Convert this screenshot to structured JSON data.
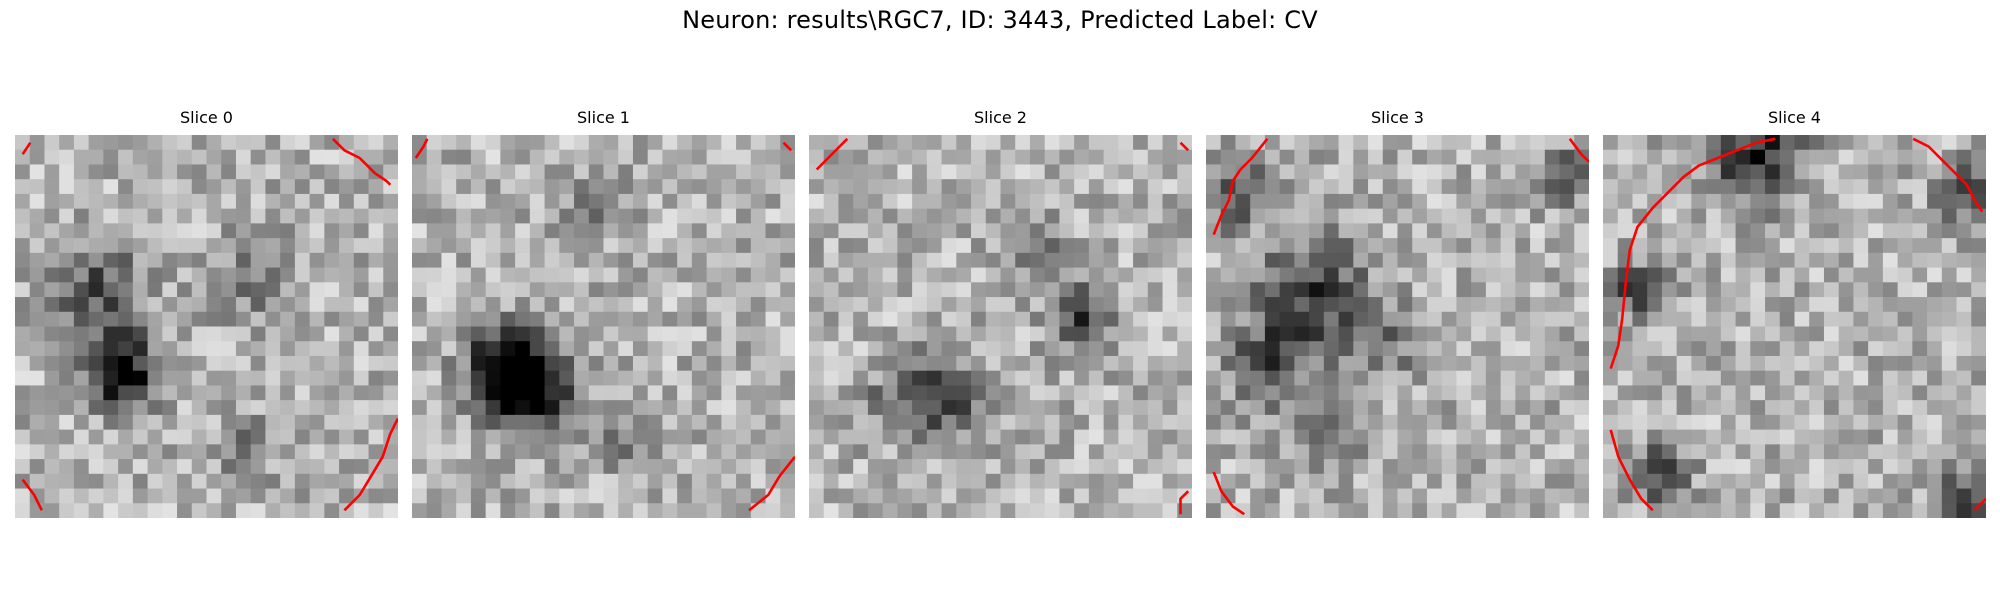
{
  "figure": {
    "title": "Neuron: results\\RGC7, ID: 3443, Predicted Label: CV",
    "grid_size": 26,
    "colormap": "gray",
    "contour_color": "#ff0000"
  },
  "slices": [
    {
      "label": "Slice 0",
      "dark_spots": [
        [
          0.28,
          0.62,
          0.09,
          0.7
        ],
        [
          0.22,
          0.4,
          0.12,
          0.35
        ],
        [
          0.62,
          0.38,
          0.1,
          0.25
        ],
        [
          0.6,
          0.82,
          0.08,
          0.2
        ]
      ],
      "contours": [
        [
          [
            0.83,
            0.01
          ],
          [
            0.86,
            0.04
          ],
          [
            0.9,
            0.06
          ],
          [
            0.94,
            0.1
          ],
          [
            0.97,
            0.12
          ],
          [
            0.98,
            0.13
          ]
        ],
        [
          [
            0.86,
            0.98
          ],
          [
            0.9,
            0.94
          ],
          [
            0.93,
            0.89
          ],
          [
            0.96,
            0.84
          ],
          [
            0.98,
            0.78
          ],
          [
            1.0,
            0.74
          ]
        ],
        [
          [
            0.02,
            0.9
          ],
          [
            0.05,
            0.94
          ],
          [
            0.07,
            0.98
          ]
        ],
        [
          [
            0.02,
            0.05
          ],
          [
            0.04,
            0.02
          ]
        ]
      ]
    },
    {
      "label": "Slice 1",
      "dark_spots": [
        [
          0.3,
          0.66,
          0.11,
          0.78
        ],
        [
          0.24,
          0.58,
          0.09,
          0.5
        ],
        [
          0.58,
          0.8,
          0.08,
          0.25
        ],
        [
          0.45,
          0.2,
          0.1,
          0.15
        ]
      ],
      "contours": [
        [
          [
            0.01,
            0.06
          ],
          [
            0.03,
            0.03
          ],
          [
            0.04,
            0.01
          ]
        ],
        [
          [
            0.97,
            0.02
          ],
          [
            0.99,
            0.04
          ]
        ],
        [
          [
            0.88,
            0.98
          ],
          [
            0.93,
            0.94
          ],
          [
            0.96,
            0.89
          ],
          [
            1.0,
            0.84
          ]
        ]
      ]
    },
    {
      "label": "Slice 2",
      "dark_spots": [
        [
          0.35,
          0.68,
          0.1,
          0.45
        ],
        [
          0.72,
          0.48,
          0.08,
          0.45
        ],
        [
          0.6,
          0.3,
          0.09,
          0.2
        ],
        [
          0.2,
          0.7,
          0.08,
          0.2
        ]
      ],
      "contours": [
        [
          [
            0.02,
            0.09
          ],
          [
            0.05,
            0.06
          ],
          [
            0.08,
            0.03
          ],
          [
            0.1,
            0.01
          ]
        ],
        [
          [
            0.97,
            0.02
          ],
          [
            0.99,
            0.04
          ]
        ],
        [
          [
            0.97,
            0.99
          ],
          [
            0.97,
            0.95
          ],
          [
            0.99,
            0.93
          ]
        ]
      ]
    },
    {
      "label": "Slice 3",
      "dark_spots": [
        [
          0.28,
          0.42,
          0.14,
          0.45
        ],
        [
          0.16,
          0.6,
          0.1,
          0.4
        ],
        [
          0.5,
          0.55,
          0.1,
          0.2
        ],
        [
          0.3,
          0.8,
          0.09,
          0.25
        ],
        [
          0.07,
          0.15,
          0.08,
          0.45
        ],
        [
          0.94,
          0.1,
          0.07,
          0.35
        ]
      ],
      "contours": [
        [
          [
            0.02,
            0.26
          ],
          [
            0.04,
            0.21
          ],
          [
            0.06,
            0.17
          ],
          [
            0.07,
            0.12
          ],
          [
            0.09,
            0.09
          ],
          [
            0.12,
            0.06
          ],
          [
            0.16,
            0.01
          ]
        ],
        [
          [
            0.95,
            0.01
          ],
          [
            0.98,
            0.05
          ],
          [
            1.0,
            0.07
          ]
        ],
        [
          [
            0.02,
            0.88
          ],
          [
            0.04,
            0.93
          ],
          [
            0.07,
            0.97
          ],
          [
            0.1,
            0.99
          ]
        ]
      ]
    },
    {
      "label": "Slice 4",
      "dark_spots": [
        [
          0.1,
          0.4,
          0.06,
          0.55
        ],
        [
          0.4,
          0.05,
          0.12,
          0.55
        ],
        [
          0.15,
          0.88,
          0.07,
          0.5
        ],
        [
          0.95,
          0.15,
          0.07,
          0.5
        ],
        [
          0.95,
          0.95,
          0.08,
          0.4
        ]
      ],
      "contours": [
        [
          [
            0.02,
            0.61
          ],
          [
            0.04,
            0.55
          ],
          [
            0.05,
            0.48
          ],
          [
            0.06,
            0.38
          ],
          [
            0.07,
            0.3
          ],
          [
            0.09,
            0.24
          ],
          [
            0.13,
            0.19
          ],
          [
            0.17,
            0.15
          ],
          [
            0.21,
            0.11
          ],
          [
            0.25,
            0.08
          ],
          [
            0.3,
            0.06
          ],
          [
            0.35,
            0.04
          ],
          [
            0.4,
            0.02
          ],
          [
            0.45,
            0.01
          ]
        ],
        [
          [
            0.81,
            0.01
          ],
          [
            0.85,
            0.03
          ],
          [
            0.89,
            0.07
          ],
          [
            0.92,
            0.1
          ],
          [
            0.95,
            0.13
          ],
          [
            0.97,
            0.17
          ],
          [
            0.99,
            0.2
          ]
        ],
        [
          [
            0.02,
            0.77
          ],
          [
            0.04,
            0.84
          ],
          [
            0.07,
            0.9
          ],
          [
            0.1,
            0.95
          ],
          [
            0.13,
            0.98
          ]
        ],
        [
          [
            0.97,
            0.98
          ],
          [
            1.0,
            0.95
          ]
        ]
      ]
    }
  ]
}
